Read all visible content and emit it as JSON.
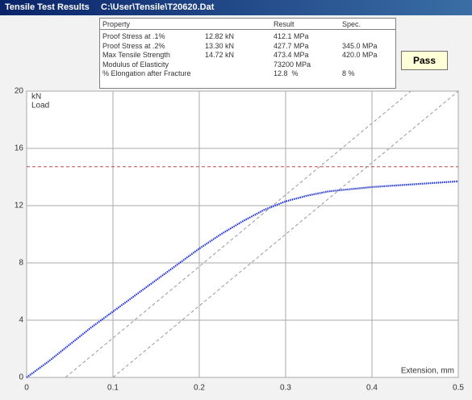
{
  "header": {
    "title": "Tensile Test Results",
    "file": "C:\\User\\Tensile\\T20620.Dat"
  },
  "table": {
    "columns": {
      "property": "Property",
      "result": "Result",
      "spec": "Spec."
    },
    "rows": [
      {
        "property": "Proof Stress at .1%",
        "load": "12.82 kN",
        "result": "412.1 MPa"
      },
      {
        "property": "Proof Stress at .2%",
        "load": "13.30 kN",
        "result": "427.7 MPa",
        "spec": "345.0 MPa"
      },
      {
        "property": "Max Tensile Strength",
        "load": "14.72 kN",
        "result": "473.4 MPa",
        "spec": "420.0 MPa"
      },
      {
        "property": "Modulus of Elasticity",
        "result": "73200 MPa"
      },
      {
        "property": "% Elongation after Fracture",
        "result": "12.8  %",
        "spec": "8 %"
      }
    ]
  },
  "status": "Pass",
  "chart_data": {
    "type": "line",
    "y_label_unit": "kN",
    "y_label": "Load",
    "x_label": "Extension, mm",
    "x": [
      0,
      0.025,
      0.05,
      0.075,
      0.1,
      0.125,
      0.15,
      0.175,
      0.2,
      0.225,
      0.25,
      0.275,
      0.3,
      0.325,
      0.35,
      0.375,
      0.4,
      0.425,
      0.45,
      0.475,
      0.5
    ],
    "values": [
      0,
      1.1,
      2.3,
      3.5,
      4.6,
      5.7,
      6.8,
      7.9,
      9.0,
      10.0,
      10.9,
      11.7,
      12.3,
      12.7,
      13.0,
      13.15,
      13.3,
      13.4,
      13.5,
      13.6,
      13.7
    ],
    "color": "#1a2ee0",
    "xlim": [
      0,
      0.5
    ],
    "ylim": [
      0,
      20
    ],
    "xticks": [
      0,
      0.1,
      0.2,
      0.3,
      0.4,
      0.5
    ],
    "yticks": [
      0,
      4,
      8,
      12,
      16,
      20
    ],
    "grid": true,
    "hlines": [
      {
        "value": 14.72,
        "color": "#c04848"
      }
    ],
    "offset_lines": [
      {
        "x": [
          0.045,
          0.445
        ],
        "y": [
          0,
          20
        ],
        "color": "#999999"
      },
      {
        "x": [
          0.1,
          0.5
        ],
        "y": [
          0,
          20
        ],
        "color": "#999999"
      }
    ]
  }
}
